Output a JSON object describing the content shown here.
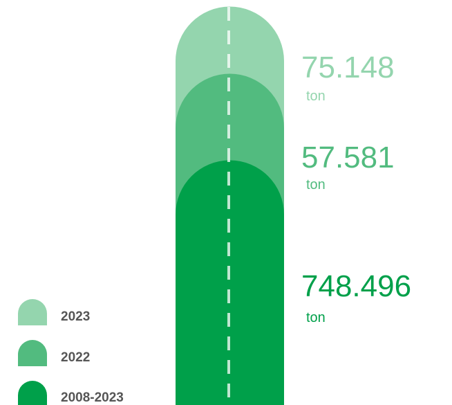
{
  "items": [
    {
      "value": "75.148",
      "unit": "ton"
    },
    {
      "value": "57.581",
      "unit": "ton"
    },
    {
      "value": "748.496",
      "unit": "ton"
    }
  ],
  "legend": [
    {
      "label": "2023"
    },
    {
      "label": "2022"
    },
    {
      "label": "2008-2023"
    }
  ]
}
